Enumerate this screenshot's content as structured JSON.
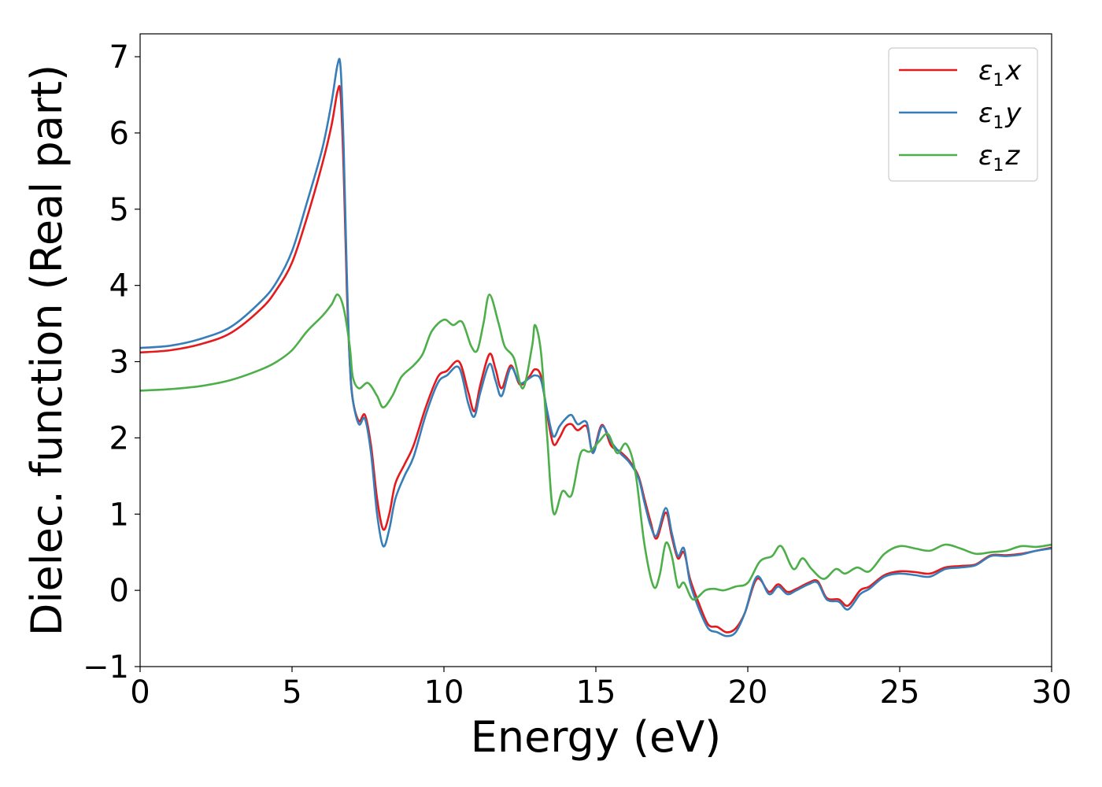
{
  "chart_data": {
    "type": "line",
    "title": "",
    "xlabel": "Energy (eV)",
    "ylabel": "Dielec. function (Real part)",
    "xlim": [
      0,
      30
    ],
    "ylim": [
      -1,
      7.3
    ],
    "xticks": [
      0,
      5,
      10,
      15,
      20,
      25,
      30
    ],
    "yticks": [
      -1,
      0,
      1,
      2,
      3,
      4,
      5,
      6,
      7
    ],
    "grid": false,
    "legend_position": "top-right",
    "series": [
      {
        "name": "ε1x",
        "symbol": "ε",
        "subscript": "1",
        "suffix": "x",
        "color": "#e41a1c",
        "points": [
          [
            0,
            3.12
          ],
          [
            1,
            3.15
          ],
          [
            2,
            3.23
          ],
          [
            3,
            3.38
          ],
          [
            4,
            3.7
          ],
          [
            4.5,
            3.95
          ],
          [
            5,
            4.3
          ],
          [
            5.5,
            4.9
          ],
          [
            6,
            5.6
          ],
          [
            6.3,
            6.1
          ],
          [
            6.5,
            6.55
          ],
          [
            6.6,
            6.5
          ],
          [
            6.7,
            5.5
          ],
          [
            6.8,
            4.0
          ],
          [
            6.9,
            3.0
          ],
          [
            7.0,
            2.5
          ],
          [
            7.2,
            2.22
          ],
          [
            7.4,
            2.3
          ],
          [
            7.6,
            1.9
          ],
          [
            7.8,
            1.2
          ],
          [
            8.0,
            0.8
          ],
          [
            8.2,
            1.0
          ],
          [
            8.4,
            1.4
          ],
          [
            8.7,
            1.65
          ],
          [
            9.0,
            1.9
          ],
          [
            9.4,
            2.4
          ],
          [
            9.8,
            2.8
          ],
          [
            10.1,
            2.88
          ],
          [
            10.5,
            3.0
          ],
          [
            10.8,
            2.6
          ],
          [
            11.0,
            2.35
          ],
          [
            11.2,
            2.7
          ],
          [
            11.5,
            3.1
          ],
          [
            11.7,
            2.9
          ],
          [
            11.9,
            2.65
          ],
          [
            12.2,
            2.95
          ],
          [
            12.5,
            2.7
          ],
          [
            12.8,
            2.8
          ],
          [
            13.0,
            2.9
          ],
          [
            13.2,
            2.8
          ],
          [
            13.4,
            2.3
          ],
          [
            13.6,
            1.92
          ],
          [
            13.8,
            2.0
          ],
          [
            14.0,
            2.15
          ],
          [
            14.2,
            2.18
          ],
          [
            14.4,
            2.1
          ],
          [
            14.7,
            2.15
          ],
          [
            14.9,
            1.82
          ],
          [
            15.2,
            2.17
          ],
          [
            15.5,
            1.9
          ],
          [
            15.8,
            1.82
          ],
          [
            16.1,
            1.7
          ],
          [
            16.4,
            1.5
          ],
          [
            16.6,
            1.2
          ],
          [
            16.8,
            0.9
          ],
          [
            17.0,
            0.68
          ],
          [
            17.3,
            1.02
          ],
          [
            17.5,
            0.7
          ],
          [
            17.7,
            0.42
          ],
          [
            17.9,
            0.5
          ],
          [
            18.1,
            0.15
          ],
          [
            18.4,
            -0.18
          ],
          [
            18.7,
            -0.45
          ],
          [
            19.0,
            -0.48
          ],
          [
            19.3,
            -0.55
          ],
          [
            19.6,
            -0.5
          ],
          [
            19.9,
            -0.3
          ],
          [
            20.3,
            0.15
          ],
          [
            20.7,
            -0.02
          ],
          [
            21.0,
            0.08
          ],
          [
            21.3,
            -0.02
          ],
          [
            21.6,
            0.02
          ],
          [
            22.0,
            0.1
          ],
          [
            22.3,
            0.12
          ],
          [
            22.6,
            -0.1
          ],
          [
            23.0,
            -0.12
          ],
          [
            23.3,
            -0.2
          ],
          [
            23.7,
            0.0
          ],
          [
            24.0,
            0.05
          ],
          [
            24.5,
            0.2
          ],
          [
            25.0,
            0.25
          ],
          [
            25.5,
            0.24
          ],
          [
            26.0,
            0.22
          ],
          [
            26.5,
            0.3
          ],
          [
            27.0,
            0.32
          ],
          [
            27.5,
            0.34
          ],
          [
            28.0,
            0.46
          ],
          [
            28.5,
            0.46
          ],
          [
            29.0,
            0.48
          ],
          [
            29.5,
            0.52
          ],
          [
            30,
            0.56
          ]
        ]
      },
      {
        "name": "ε1y",
        "symbol": "ε",
        "subscript": "1",
        "suffix": "y",
        "color": "#377eb8",
        "points": [
          [
            0,
            3.18
          ],
          [
            1,
            3.21
          ],
          [
            2,
            3.3
          ],
          [
            3,
            3.46
          ],
          [
            4,
            3.8
          ],
          [
            4.5,
            4.05
          ],
          [
            5,
            4.45
          ],
          [
            5.5,
            5.1
          ],
          [
            6,
            5.8
          ],
          [
            6.3,
            6.4
          ],
          [
            6.5,
            6.9
          ],
          [
            6.6,
            6.85
          ],
          [
            6.7,
            5.8
          ],
          [
            6.8,
            4.2
          ],
          [
            6.9,
            3.0
          ],
          [
            7.0,
            2.5
          ],
          [
            7.2,
            2.18
          ],
          [
            7.4,
            2.25
          ],
          [
            7.6,
            1.8
          ],
          [
            7.8,
            1.0
          ],
          [
            8.0,
            0.58
          ],
          [
            8.2,
            0.8
          ],
          [
            8.4,
            1.2
          ],
          [
            8.7,
            1.5
          ],
          [
            9.0,
            1.75
          ],
          [
            9.4,
            2.3
          ],
          [
            9.8,
            2.72
          ],
          [
            10.1,
            2.82
          ],
          [
            10.5,
            2.92
          ],
          [
            10.8,
            2.45
          ],
          [
            11.0,
            2.28
          ],
          [
            11.2,
            2.6
          ],
          [
            11.5,
            2.97
          ],
          [
            11.7,
            2.75
          ],
          [
            11.9,
            2.55
          ],
          [
            12.2,
            2.92
          ],
          [
            12.5,
            2.72
          ],
          [
            12.8,
            2.78
          ],
          [
            13.0,
            2.82
          ],
          [
            13.2,
            2.75
          ],
          [
            13.4,
            2.35
          ],
          [
            13.6,
            2.02
          ],
          [
            13.8,
            2.15
          ],
          [
            14.0,
            2.25
          ],
          [
            14.2,
            2.3
          ],
          [
            14.4,
            2.18
          ],
          [
            14.7,
            2.2
          ],
          [
            14.9,
            1.8
          ],
          [
            15.2,
            2.15
          ],
          [
            15.5,
            1.95
          ],
          [
            15.8,
            1.8
          ],
          [
            16.1,
            1.68
          ],
          [
            16.4,
            1.48
          ],
          [
            16.6,
            1.15
          ],
          [
            16.8,
            0.85
          ],
          [
            17.0,
            0.72
          ],
          [
            17.3,
            1.08
          ],
          [
            17.5,
            0.75
          ],
          [
            17.7,
            0.45
          ],
          [
            17.9,
            0.55
          ],
          [
            18.1,
            0.1
          ],
          [
            18.4,
            -0.25
          ],
          [
            18.7,
            -0.5
          ],
          [
            19.0,
            -0.55
          ],
          [
            19.3,
            -0.6
          ],
          [
            19.6,
            -0.55
          ],
          [
            19.9,
            -0.3
          ],
          [
            20.3,
            0.18
          ],
          [
            20.7,
            -0.05
          ],
          [
            21.0,
            0.05
          ],
          [
            21.3,
            -0.05
          ],
          [
            21.6,
            0.0
          ],
          [
            22.0,
            0.08
          ],
          [
            22.3,
            0.1
          ],
          [
            22.6,
            -0.12
          ],
          [
            23.0,
            -0.15
          ],
          [
            23.3,
            -0.25
          ],
          [
            23.7,
            -0.05
          ],
          [
            24.0,
            0.02
          ],
          [
            24.5,
            0.18
          ],
          [
            25.0,
            0.22
          ],
          [
            25.5,
            0.2
          ],
          [
            26.0,
            0.18
          ],
          [
            26.5,
            0.28
          ],
          [
            27.0,
            0.3
          ],
          [
            27.5,
            0.33
          ],
          [
            28.0,
            0.45
          ],
          [
            28.5,
            0.45
          ],
          [
            29.0,
            0.47
          ],
          [
            29.5,
            0.52
          ],
          [
            30,
            0.55
          ]
        ]
      },
      {
        "name": "ε1z",
        "symbol": "ε",
        "subscript": "1",
        "suffix": "z",
        "color": "#4daf4a",
        "points": [
          [
            0,
            2.62
          ],
          [
            1,
            2.64
          ],
          [
            2,
            2.68
          ],
          [
            3,
            2.76
          ],
          [
            4,
            2.9
          ],
          [
            4.5,
            3.0
          ],
          [
            5,
            3.15
          ],
          [
            5.5,
            3.4
          ],
          [
            6,
            3.6
          ],
          [
            6.3,
            3.75
          ],
          [
            6.5,
            3.88
          ],
          [
            6.7,
            3.7
          ],
          [
            6.9,
            3.2
          ],
          [
            7.0,
            2.8
          ],
          [
            7.2,
            2.65
          ],
          [
            7.5,
            2.72
          ],
          [
            7.8,
            2.55
          ],
          [
            8.0,
            2.4
          ],
          [
            8.3,
            2.55
          ],
          [
            8.6,
            2.8
          ],
          [
            9.0,
            2.95
          ],
          [
            9.3,
            3.1
          ],
          [
            9.6,
            3.4
          ],
          [
            10.0,
            3.55
          ],
          [
            10.3,
            3.48
          ],
          [
            10.6,
            3.52
          ],
          [
            10.9,
            3.2
          ],
          [
            11.1,
            3.15
          ],
          [
            11.3,
            3.5
          ],
          [
            11.5,
            3.88
          ],
          [
            11.8,
            3.5
          ],
          [
            12.0,
            3.2
          ],
          [
            12.3,
            3.05
          ],
          [
            12.6,
            2.65
          ],
          [
            12.9,
            3.2
          ],
          [
            13.0,
            3.48
          ],
          [
            13.2,
            3.1
          ],
          [
            13.4,
            2.0
          ],
          [
            13.6,
            1.02
          ],
          [
            13.9,
            1.3
          ],
          [
            14.2,
            1.25
          ],
          [
            14.5,
            1.8
          ],
          [
            14.8,
            1.82
          ],
          [
            15.1,
            1.95
          ],
          [
            15.4,
            2.05
          ],
          [
            15.7,
            1.8
          ],
          [
            16.0,
            1.92
          ],
          [
            16.3,
            1.55
          ],
          [
            16.6,
            0.6
          ],
          [
            16.9,
            0.05
          ],
          [
            17.1,
            0.2
          ],
          [
            17.3,
            0.62
          ],
          [
            17.5,
            0.45
          ],
          [
            17.7,
            0.05
          ],
          [
            17.9,
            0.1
          ],
          [
            18.2,
            -0.12
          ],
          [
            18.6,
            0.0
          ],
          [
            18.9,
            0.02
          ],
          [
            19.2,
            0.0
          ],
          [
            19.6,
            0.05
          ],
          [
            20.0,
            0.1
          ],
          [
            20.4,
            0.38
          ],
          [
            20.8,
            0.45
          ],
          [
            21.1,
            0.58
          ],
          [
            21.5,
            0.28
          ],
          [
            21.8,
            0.42
          ],
          [
            22.1,
            0.28
          ],
          [
            22.5,
            0.15
          ],
          [
            22.9,
            0.28
          ],
          [
            23.2,
            0.22
          ],
          [
            23.6,
            0.3
          ],
          [
            24.0,
            0.25
          ],
          [
            24.5,
            0.48
          ],
          [
            25.0,
            0.58
          ],
          [
            25.5,
            0.55
          ],
          [
            26.0,
            0.52
          ],
          [
            26.5,
            0.6
          ],
          [
            27.0,
            0.55
          ],
          [
            27.5,
            0.48
          ],
          [
            28.0,
            0.5
          ],
          [
            28.5,
            0.52
          ],
          [
            29.0,
            0.58
          ],
          [
            29.5,
            0.57
          ],
          [
            30,
            0.6
          ]
        ]
      }
    ]
  }
}
